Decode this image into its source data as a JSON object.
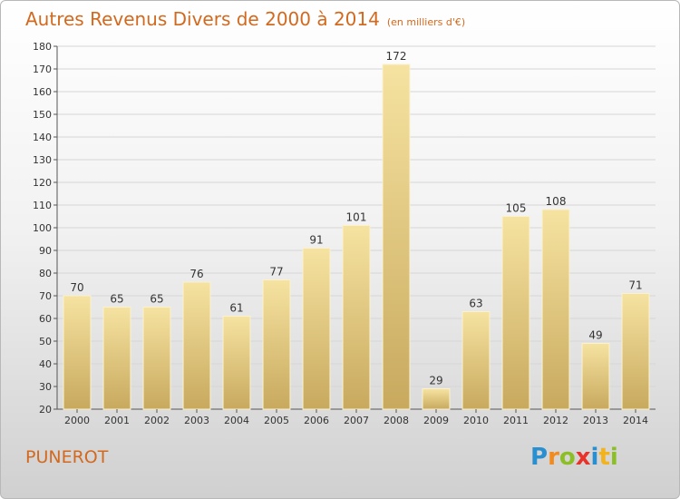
{
  "header": {
    "title": "Autres Revenus Divers de 2000 à 2014",
    "subtitle": "(en milliers d'€)"
  },
  "footer": {
    "commune": "PUNEROT",
    "brand_letters": [
      "P",
      "r",
      "o",
      "x",
      "i",
      "t",
      "i"
    ],
    "brand_colors": [
      "#2a8fd0",
      "#f28a1c",
      "#8cbf26",
      "#e8332a",
      "#2a8fd0",
      "#f2b31c",
      "#8cbf26"
    ]
  },
  "colors": {
    "bar_light": "#f6e3a1",
    "bar_dark": "#c8a95e",
    "title": "#d2691e"
  },
  "chart_data": {
    "type": "bar",
    "categories": [
      "2000",
      "2001",
      "2002",
      "2003",
      "2004",
      "2005",
      "2006",
      "2007",
      "2008",
      "2009",
      "2010",
      "2011",
      "2012",
      "2013",
      "2014"
    ],
    "values": [
      70,
      65,
      65,
      76,
      61,
      77,
      91,
      101,
      172,
      29,
      63,
      105,
      108,
      49,
      71
    ],
    "yticks": [
      20,
      30,
      40,
      50,
      60,
      70,
      80,
      90,
      100,
      110,
      120,
      130,
      140,
      150,
      160,
      170,
      180
    ],
    "ylim": [
      20,
      180
    ],
    "grid": true,
    "data_labels": true
  }
}
